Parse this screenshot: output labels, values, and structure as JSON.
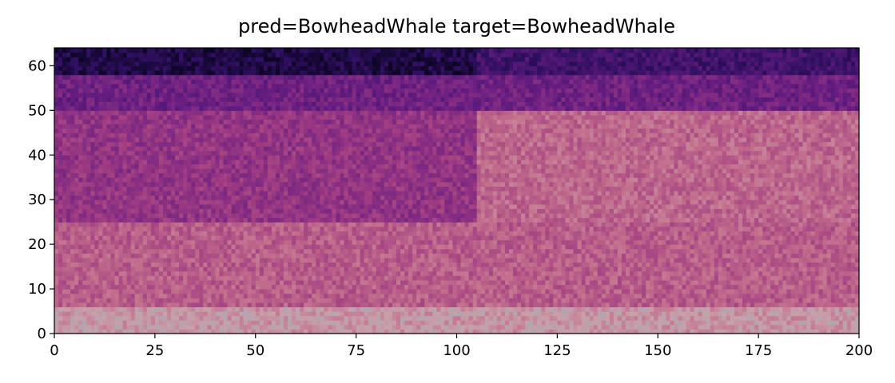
{
  "chart_data": {
    "type": "heatmap",
    "title": "pred=BowheadWhale  target=BowheadWhale",
    "xlabel": "",
    "ylabel": "",
    "xlim": [
      0,
      200
    ],
    "ylim": [
      0,
      64
    ],
    "xticks": [
      0,
      25,
      50,
      75,
      100,
      125,
      150,
      175,
      200
    ],
    "yticks": [
      0,
      10,
      20,
      30,
      40,
      50,
      60
    ],
    "colormap": "magma-like, high intensity at low frequency bins",
    "n_time_bins": 200,
    "n_freq_bins": 64,
    "regions": [
      {
        "freq_range": [
          0,
          6
        ],
        "time_range": [
          0,
          200
        ],
        "level": 0.9
      },
      {
        "freq_range": [
          6,
          25
        ],
        "time_range": [
          0,
          200
        ],
        "level": 0.72
      },
      {
        "freq_range": [
          25,
          50
        ],
        "time_range": [
          0,
          105
        ],
        "level": 0.55
      },
      {
        "freq_range": [
          25,
          50
        ],
        "time_range": [
          105,
          200
        ],
        "level": 0.75
      },
      {
        "freq_range": [
          50,
          58
        ],
        "time_range": [
          0,
          200
        ],
        "level": 0.42
      },
      {
        "freq_range": [
          58,
          64
        ],
        "time_range": [
          0,
          105
        ],
        "level": 0.12
      },
      {
        "freq_range": [
          58,
          64
        ],
        "time_range": [
          105,
          200
        ],
        "level": 0.25
      }
    ],
    "grid": false,
    "legend": "none"
  }
}
